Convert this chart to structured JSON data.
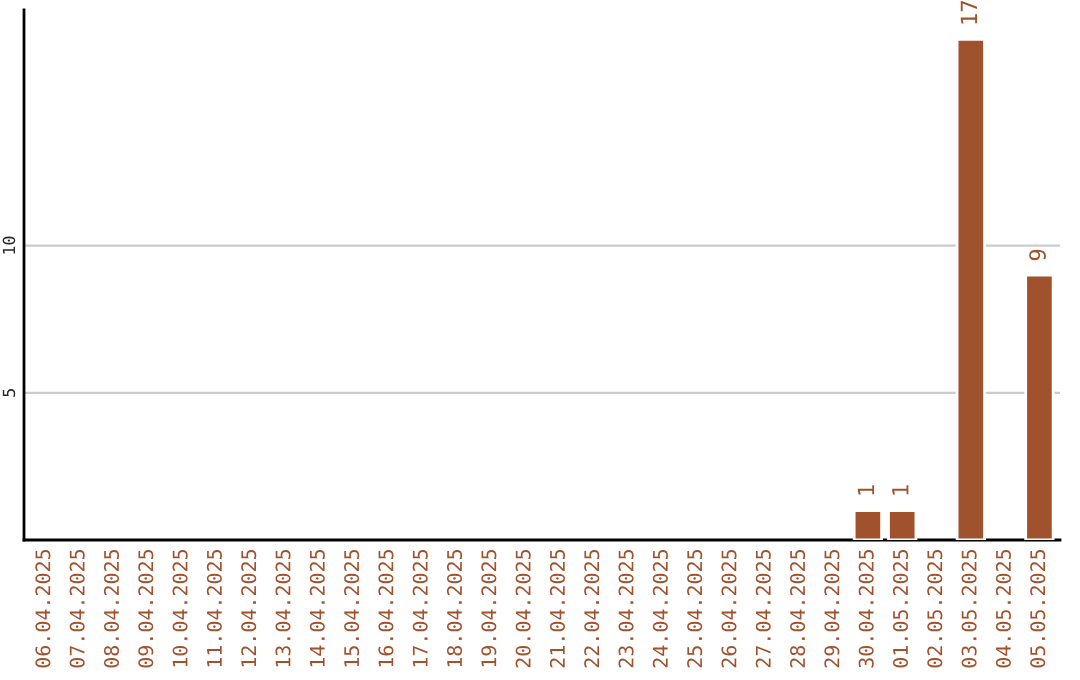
{
  "chart_data": {
    "type": "bar",
    "categories": [
      "06.04.2025",
      "07.04.2025",
      "08.04.2025",
      "09.04.2025",
      "10.04.2025",
      "11.04.2025",
      "12.04.2025",
      "13.04.2025",
      "14.04.2025",
      "15.04.2025",
      "16.04.2025",
      "17.04.2025",
      "18.04.2025",
      "19.04.2025",
      "20.04.2025",
      "21.04.2025",
      "22.04.2025",
      "23.04.2025",
      "24.04.2025",
      "25.04.2025",
      "26.04.2025",
      "27.04.2025",
      "28.04.2025",
      "29.04.2025",
      "30.04.2025",
      "01.05.2025",
      "02.05.2025",
      "03.05.2025",
      "04.05.2025",
      "05.05.2025"
    ],
    "values": [
      null,
      null,
      null,
      null,
      null,
      null,
      null,
      null,
      null,
      null,
      null,
      null,
      null,
      null,
      null,
      null,
      null,
      null,
      null,
      null,
      null,
      null,
      null,
      null,
      1,
      1,
      null,
      17,
      null,
      9
    ],
    "color": "#a0522d",
    "ylim": [
      0,
      18
    ],
    "yticks": [
      5,
      10
    ],
    "grid": "y",
    "data_labels": true
  }
}
